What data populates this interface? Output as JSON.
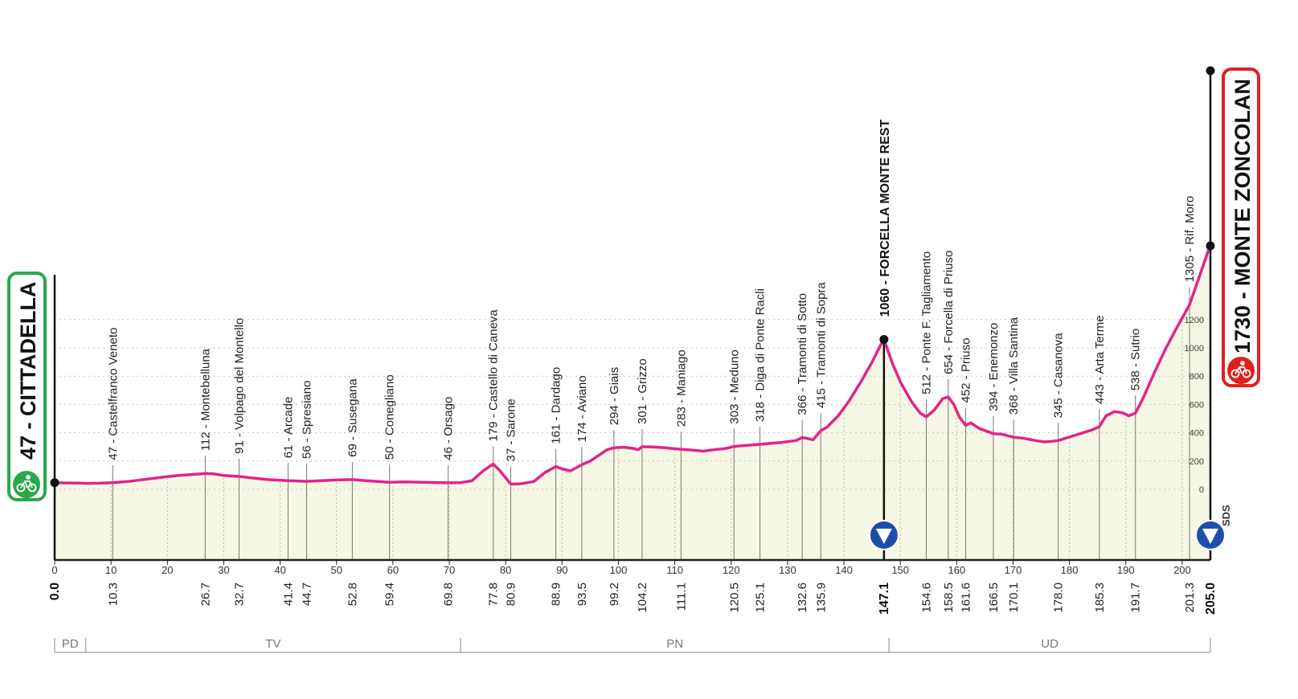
{
  "chart_data": {
    "type": "area",
    "km_axis_ticks": [
      0,
      10,
      20,
      30,
      40,
      50,
      60,
      70,
      80,
      90,
      100,
      110,
      120,
      130,
      140,
      150,
      160,
      170,
      180,
      190,
      200
    ],
    "altitude_ticks": [
      0,
      200,
      400,
      600,
      800,
      1000,
      1200
    ],
    "waypoints": [
      {
        "km": 0.0,
        "km_label": "0.0",
        "alt": 47,
        "label": "",
        "bold": true
      },
      {
        "km": 10.3,
        "km_label": "10.3",
        "alt": 47,
        "label": "47 - Castelfranco Veneto"
      },
      {
        "km": 26.7,
        "km_label": "26.7",
        "alt": 112,
        "label": "112 - Montebelluna"
      },
      {
        "km": 32.7,
        "km_label": "32.7",
        "alt": 91,
        "label": "91 - Volpago del Montello"
      },
      {
        "km": 41.4,
        "km_label": "41.4",
        "alt": 61,
        "label": "61 - Arcade"
      },
      {
        "km": 44.7,
        "km_label": "44.7",
        "alt": 56,
        "label": "56 - Spresiano"
      },
      {
        "km": 52.8,
        "km_label": "52.8",
        "alt": 69,
        "label": "69 - Susegana"
      },
      {
        "km": 59.4,
        "km_label": "59.4",
        "alt": 50,
        "label": "50 - Conegliano"
      },
      {
        "km": 69.8,
        "km_label": "69.8",
        "alt": 46,
        "label": "46 - Orsago"
      },
      {
        "km": 77.8,
        "km_label": "77.8",
        "alt": 179,
        "label": "179 - Castello di Caneva"
      },
      {
        "km": 80.9,
        "km_label": "80.9",
        "alt": 37,
        "label": "37 - Sarone"
      },
      {
        "km": 88.9,
        "km_label": "88.9",
        "alt": 161,
        "label": "161 - Dardago"
      },
      {
        "km": 93.5,
        "km_label": "93.5",
        "alt": 174,
        "label": "174 - Aviano"
      },
      {
        "km": 99.2,
        "km_label": "99.2",
        "alt": 294,
        "label": "294 - Giais"
      },
      {
        "km": 104.2,
        "km_label": "104.2",
        "alt": 301,
        "label": "301 - Grizzo"
      },
      {
        "km": 111.1,
        "km_label": "111.1",
        "alt": 283,
        "label": "283 - Maniago"
      },
      {
        "km": 120.5,
        "km_label": "120.5",
        "alt": 303,
        "label": "303 - Meduno"
      },
      {
        "km": 125.1,
        "km_label": "125.1",
        "alt": 318,
        "label": "318 - Diga di Ponte Racli"
      },
      {
        "km": 132.6,
        "km_label": "132.6",
        "alt": 366,
        "label": "366 - Tramonti di Sotto"
      },
      {
        "km": 135.9,
        "km_label": "135.9",
        "alt": 415,
        "label": "415 - Tramonti di Sopra"
      },
      {
        "km": 147.1,
        "km_label": "147.1",
        "alt": 1060,
        "label": "",
        "bold": true
      },
      {
        "km": 154.6,
        "km_label": "154.6",
        "alt": 512,
        "label": "512 - Ponte F. Tagliamento"
      },
      {
        "km": 158.5,
        "km_label": "158.5",
        "alt": 654,
        "label": "654 - Forcella di Priuso"
      },
      {
        "km": 161.6,
        "km_label": "161.6",
        "alt": 452,
        "label": "452 - Priuso"
      },
      {
        "km": 166.5,
        "km_label": "166.5",
        "alt": 394,
        "label": "394 - Enemonzo"
      },
      {
        "km": 170.1,
        "km_label": "170.1",
        "alt": 368,
        "label": "368 - Villa Santina"
      },
      {
        "km": 178.0,
        "km_label": "178.0",
        "alt": 345,
        "label": "345 - Casanova"
      },
      {
        "km": 185.3,
        "km_label": "185.3",
        "alt": 443,
        "label": "443 - Arta Terme"
      },
      {
        "km": 191.7,
        "km_label": "191.7",
        "alt": 538,
        "label": "538 - Sutrio"
      },
      {
        "km": 201.3,
        "km_label": "201.3",
        "alt": 1305,
        "label": "1305 - Rif. Moro"
      },
      {
        "km": 205.0,
        "km_label": "205.0",
        "alt": 1730,
        "label": "",
        "bold": true
      }
    ],
    "profile": [
      [
        0,
        47
      ],
      [
        2,
        45
      ],
      [
        4,
        44
      ],
      [
        6,
        42
      ],
      [
        8,
        43
      ],
      [
        10.3,
        47
      ],
      [
        13,
        55
      ],
      [
        16,
        70
      ],
      [
        19,
        85
      ],
      [
        22,
        98
      ],
      [
        24,
        104
      ],
      [
        26.7,
        112
      ],
      [
        28,
        110
      ],
      [
        30,
        98
      ],
      [
        32.7,
        91
      ],
      [
        35,
        80
      ],
      [
        38,
        68
      ],
      [
        41.4,
        61
      ],
      [
        44.7,
        56
      ],
      [
        47,
        60
      ],
      [
        50,
        66
      ],
      [
        52.8,
        69
      ],
      [
        55,
        62
      ],
      [
        57,
        56
      ],
      [
        59.4,
        50
      ],
      [
        62,
        52
      ],
      [
        65,
        50
      ],
      [
        68,
        48
      ],
      [
        69.8,
        46
      ],
      [
        72,
        47
      ],
      [
        74,
        60
      ],
      [
        76,
        130
      ],
      [
        77.8,
        179
      ],
      [
        79,
        130
      ],
      [
        80.9,
        37
      ],
      [
        82.5,
        38
      ],
      [
        85,
        55
      ],
      [
        87,
        120
      ],
      [
        88.9,
        161
      ],
      [
        90,
        145
      ],
      [
        91.5,
        130
      ],
      [
        93.5,
        174
      ],
      [
        95,
        200
      ],
      [
        96.5,
        240
      ],
      [
        98,
        280
      ],
      [
        99.2,
        294
      ],
      [
        101,
        298
      ],
      [
        102.5,
        290
      ],
      [
        103.5,
        280
      ],
      [
        104.2,
        301
      ],
      [
        106,
        300
      ],
      [
        108,
        295
      ],
      [
        111.1,
        283
      ],
      [
        113,
        278
      ],
      [
        115,
        270
      ],
      [
        117,
        280
      ],
      [
        119,
        288
      ],
      [
        120.5,
        303
      ],
      [
        122,
        308
      ],
      [
        125.1,
        318
      ],
      [
        127,
        325
      ],
      [
        129,
        332
      ],
      [
        130.5,
        340
      ],
      [
        131.5,
        345
      ],
      [
        132.6,
        366
      ],
      [
        133.5,
        360
      ],
      [
        134.5,
        350
      ],
      [
        135.9,
        415
      ],
      [
        137,
        440
      ],
      [
        139,
        520
      ],
      [
        141,
        630
      ],
      [
        143,
        760
      ],
      [
        145,
        900
      ],
      [
        146.5,
        1020
      ],
      [
        147.1,
        1060
      ],
      [
        148.5,
        900
      ],
      [
        150,
        760
      ],
      [
        152,
        620
      ],
      [
        153.5,
        540
      ],
      [
        154.6,
        512
      ],
      [
        156,
        560
      ],
      [
        157.5,
        640
      ],
      [
        158.5,
        654
      ],
      [
        159.5,
        600
      ],
      [
        160.5,
        510
      ],
      [
        161.6,
        452
      ],
      [
        162.5,
        470
      ],
      [
        164,
        430
      ],
      [
        166.5,
        394
      ],
      [
        168,
        390
      ],
      [
        170.1,
        368
      ],
      [
        172,
        360
      ],
      [
        174,
        345
      ],
      [
        175.5,
        335
      ],
      [
        177,
        340
      ],
      [
        178,
        345
      ],
      [
        180,
        370
      ],
      [
        182,
        395
      ],
      [
        184,
        420
      ],
      [
        185.3,
        443
      ],
      [
        186.5,
        520
      ],
      [
        188,
        550
      ],
      [
        189.5,
        540
      ],
      [
        190.5,
        520
      ],
      [
        191.7,
        538
      ],
      [
        193,
        640
      ],
      [
        195,
        820
      ],
      [
        197,
        990
      ],
      [
        199,
        1140
      ],
      [
        201.3,
        1305
      ],
      [
        203,
        1500
      ],
      [
        205,
        1730
      ]
    ],
    "finish_profile_extra": [],
    "climbs": [
      {
        "km": 147.1,
        "label": "1060 - FORCELLA MONTE REST"
      },
      {
        "km": 205.0,
        "label": "1730 - MONTE ZONCOLAN"
      }
    ],
    "sprint_label": "SDS",
    "provinces": [
      {
        "name": "PD",
        "from": 0,
        "to": 5.5
      },
      {
        "name": "TV",
        "from": 5.5,
        "to": 72
      },
      {
        "name": "PN",
        "from": 72,
        "to": 148
      },
      {
        "name": "UD",
        "from": 148,
        "to": 205
      }
    ]
  },
  "start": {
    "label": "47 - CITTADELLA",
    "color": "#2aa84a"
  },
  "finish": {
    "label": "1730 - MONTE ZONCOLAN",
    "color": "#e02020"
  },
  "colors": {
    "profile_line": "#e4238b",
    "profile_fill": "#f6f7e4",
    "axis": "#222222"
  }
}
